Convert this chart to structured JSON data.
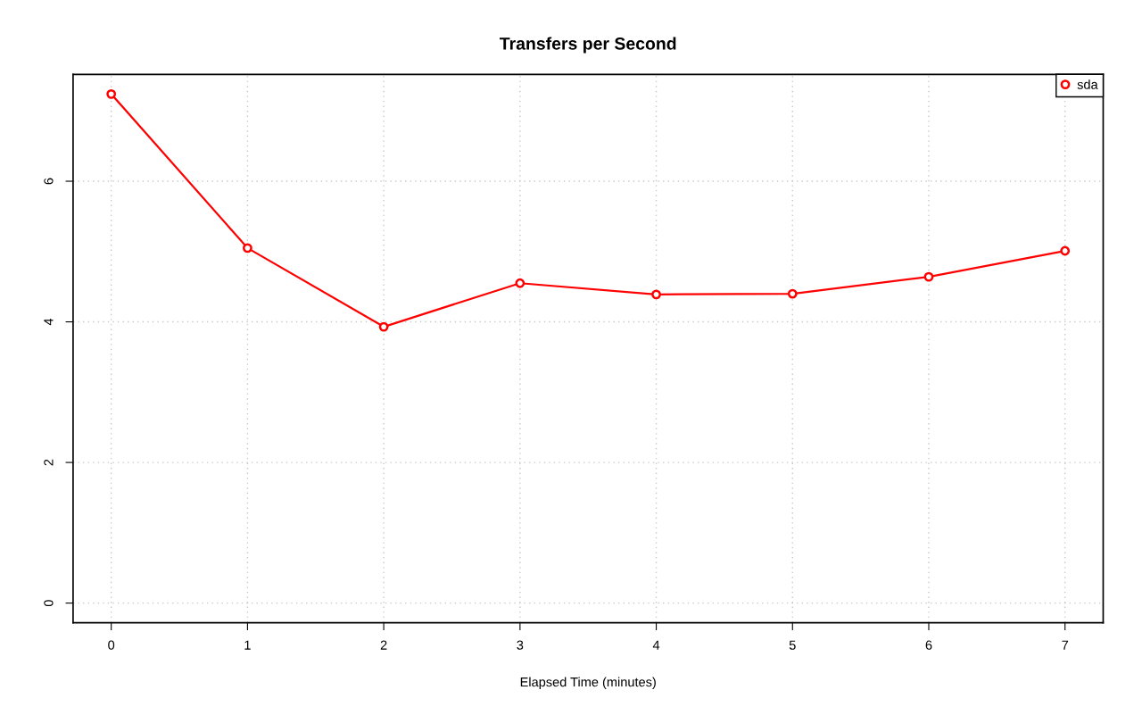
{
  "chart_data": {
    "type": "line",
    "title": "Transfers per Second",
    "xlabel": "Elapsed Time (minutes)",
    "x": [
      0,
      1,
      2,
      3,
      4,
      5,
      6,
      7
    ],
    "series": [
      {
        "name": "sda",
        "color": "#ff0000",
        "values": [
          7.24,
          5.05,
          3.93,
          4.55,
          4.39,
          4.4,
          4.64,
          5.01
        ]
      }
    ],
    "xlim": [
      -0.28,
      7.28
    ],
    "xticks": [
      0,
      1,
      2,
      3,
      4,
      5,
      6,
      7
    ],
    "ylim": [
      -0.28,
      7.52
    ],
    "yticks": [
      0,
      2,
      4,
      6
    ],
    "grid": true,
    "legend": "top right",
    "marker": "circle",
    "line_style": "solid"
  }
}
